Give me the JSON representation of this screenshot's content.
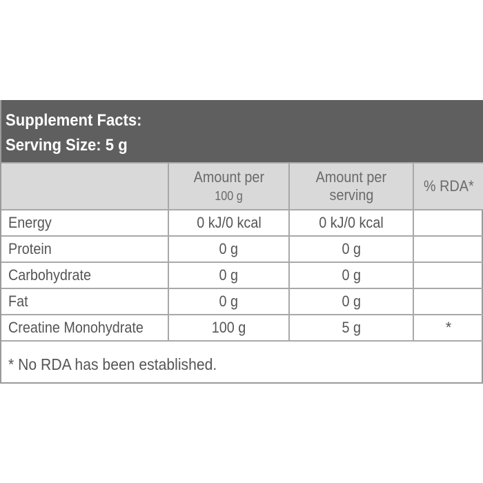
{
  "header": {
    "title": "Supplement Facts:",
    "serving_size": "Serving Size: 5 g"
  },
  "columns": {
    "blank": "",
    "per100_line1": "Amount per",
    "per100_line2": "100 g",
    "perserving_line1": "Amount per",
    "perserving_line2": "serving",
    "rda": "% RDA*"
  },
  "rows": [
    {
      "name": "Energy",
      "per100": "0 kJ/0 kcal",
      "perserving": "0 kJ/0 kcal",
      "rda": ""
    },
    {
      "name": "Protein",
      "per100": "0 g",
      "perserving": "0 g",
      "rda": ""
    },
    {
      "name": "Carbohydrate",
      "per100": "0 g",
      "perserving": "0 g",
      "rda": ""
    },
    {
      "name": "Fat",
      "per100": "0 g",
      "perserving": "0 g",
      "rda": ""
    },
    {
      "name": "Creatine Monohydrate",
      "per100": "100 g",
      "perserving": "5 g",
      "rda": "*"
    }
  ],
  "footnote": "* No RDA has been established.",
  "colors": {
    "header_bg": "#5f5f5f",
    "header_text": "#ffffff",
    "column_header_bg": "#d9d9d9",
    "border": "#a8a8a8",
    "text": "#555555"
  }
}
